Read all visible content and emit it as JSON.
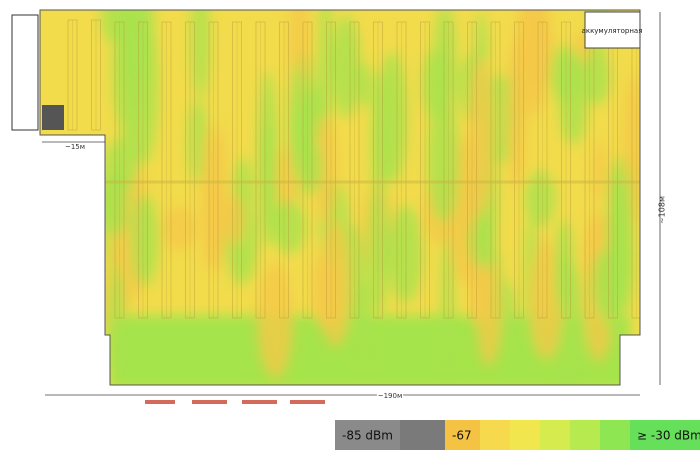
{
  "plan": {
    "battery_room": "аккумуляторная",
    "left_width": "~15м",
    "height": "~108м",
    "width": "~190м"
  },
  "legend": {
    "min_label": "-85 dBm",
    "mid_label": "-67",
    "max_label": "≥ -30 dBm"
  }
}
